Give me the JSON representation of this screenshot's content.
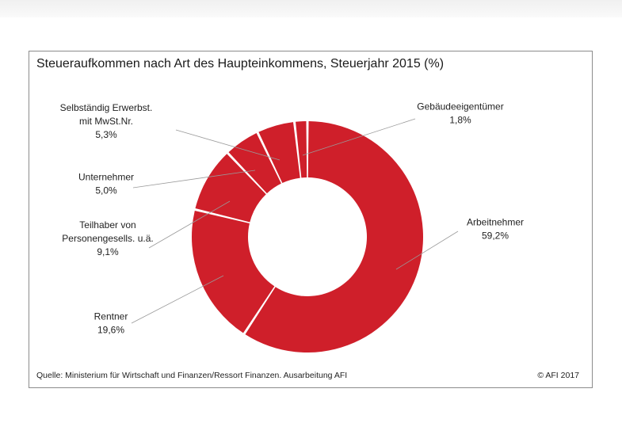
{
  "page": {
    "title": "Steueraufkommen nach Art des Haupteinkommens, Steuerjahr 2015 (%)",
    "source": "Quelle: Ministerium für Wirtschaft und Finanzen/Ressort Finanzen. Ausarbeitung AFI",
    "copyright": "© AFI 2017"
  },
  "chart_data": {
    "type": "pie",
    "donut": true,
    "title": "Steueraufkommen nach Art des Haupteinkommens, Steuerjahr 2015 (%)",
    "color": "#cf1f2a",
    "slices": [
      {
        "label_lines": [
          "Arbeitnehmer"
        ],
        "value_label": "59,2%",
        "value": 59.2
      },
      {
        "label_lines": [
          "Rentner"
        ],
        "value_label": "19,6%",
        "value": 19.6
      },
      {
        "label_lines": [
          "Teilhaber von",
          "Personengesells. u.ä."
        ],
        "value_label": "9,1%",
        "value": 9.1
      },
      {
        "label_lines": [
          "Unternehmer"
        ],
        "value_label": "5,0%",
        "value": 5.0
      },
      {
        "label_lines": [
          "Selbständig Erwerbst.",
          "mit MwSt.Nr."
        ],
        "value_label": "5,3%",
        "value": 5.3
      },
      {
        "label_lines": [
          "Gebäudeeigentümer"
        ],
        "value_label": "1,8%",
        "value": 1.8
      }
    ]
  }
}
